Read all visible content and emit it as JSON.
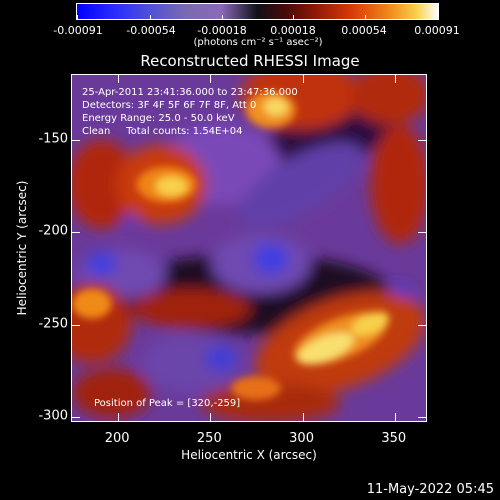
{
  "colorbar": {
    "ticks": [
      "-0.00091",
      "-0.00054",
      "-0.00018",
      "0.00018",
      "0.00054",
      "0.00091"
    ],
    "unit_label": "(photons cm⁻² s⁻¹ asec⁻²)"
  },
  "chart_data": {
    "type": "heatmap",
    "title": "Reconstructed RHESSI Image",
    "xlabel": "Heliocentric X (arcsec)",
    "ylabel": "Heliocentric Y (arcsec)",
    "xlim": [
      175,
      368
    ],
    "ylim": [
      -303,
      -115
    ],
    "x_ticks": [
      "200",
      "250",
      "300",
      "350"
    ],
    "y_ticks": [
      "-150",
      "-200",
      "-250",
      "-300"
    ],
    "x_tick_values": [
      200,
      250,
      300,
      350
    ],
    "y_tick_values": [
      -150,
      -200,
      -250,
      -300
    ],
    "colorbar_range": [
      -0.00091,
      0.00091
    ],
    "peak": [
      320,
      -259
    ],
    "annotations": {
      "time": "25-Apr-2011 23:41:36.000 to 23:47:36.000",
      "detectors": "Detectors: 3F 4F 5F 6F 7F 8F, Att 0",
      "energy": "Energy Range: 25.0 - 50.0 keV",
      "clean": "Clean     Total counts: 1.54E+04",
      "peak_text": "Position of Peak = [320,-259]"
    }
  },
  "footer": {
    "timestamp": "11-May-2022 05:45"
  }
}
